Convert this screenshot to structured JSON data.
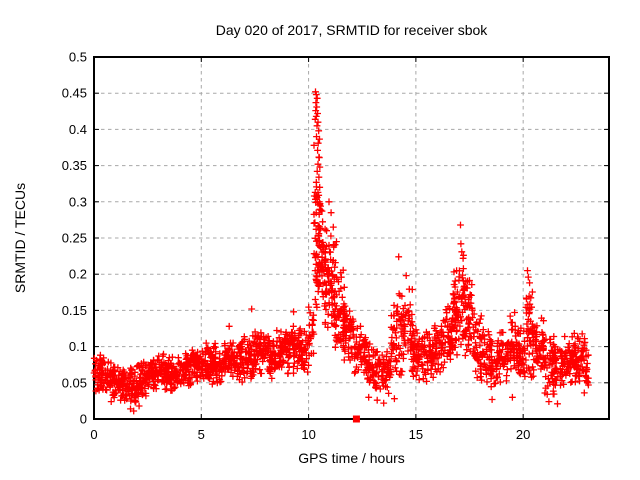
{
  "chart_data": {
    "type": "scatter",
    "title": "Day 020 of 2017, SRMTID for receiver sbok",
    "xlabel": "GPS time / hours",
    "ylabel": "SRMTID / TECUs",
    "xlim": [
      0,
      24
    ],
    "ylim": [
      0,
      0.5
    ],
    "xticks": [
      0,
      5,
      10,
      15,
      20
    ],
    "xtick_labels": [
      "0",
      "5",
      "10",
      "15",
      "20"
    ],
    "yticks": [
      0,
      0.05,
      0.1,
      0.15,
      0.2,
      0.25,
      0.3,
      0.35,
      0.4,
      0.45,
      0.5
    ],
    "ytick_labels": [
      "0",
      "0.05",
      "0.1",
      "0.15",
      "0.2",
      "0.25",
      "0.3",
      "0.35",
      "0.4",
      "0.45",
      "0.5"
    ],
    "grid": "dashed-both-axes",
    "legend": "none",
    "seed": 7,
    "colors": {
      "marker": "#ff0000",
      "grid": "#a8a8a8",
      "axis": "#000000",
      "background": "#ffffff",
      "text": "#000000"
    },
    "series": [
      {
        "name": "SRMTID",
        "marker": "plus",
        "marker_size": 7,
        "color": "#ff0000",
        "density_bands": [
          [
            0.0,
            0.5,
            0.035,
            0.09,
            52
          ],
          [
            0.5,
            1.0,
            0.028,
            0.082,
            52
          ],
          [
            1.0,
            1.5,
            0.02,
            0.075,
            52
          ],
          [
            1.5,
            2.0,
            0.015,
            0.072,
            52
          ],
          [
            2.0,
            2.5,
            0.028,
            0.08,
            52
          ],
          [
            2.5,
            3.0,
            0.035,
            0.088,
            52
          ],
          [
            3.0,
            3.5,
            0.038,
            0.095,
            52
          ],
          [
            3.5,
            4.0,
            0.035,
            0.09,
            52
          ],
          [
            4.0,
            4.5,
            0.04,
            0.1,
            52
          ],
          [
            4.5,
            5.0,
            0.045,
            0.105,
            52
          ],
          [
            5.0,
            5.5,
            0.048,
            0.11,
            52
          ],
          [
            5.5,
            6.0,
            0.045,
            0.105,
            52
          ],
          [
            6.0,
            6.5,
            0.05,
            0.115,
            52
          ],
          [
            6.5,
            7.0,
            0.048,
            0.11,
            52
          ],
          [
            7.0,
            7.5,
            0.055,
            0.125,
            52
          ],
          [
            7.5,
            8.0,
            0.058,
            0.132,
            52
          ],
          [
            8.0,
            8.5,
            0.055,
            0.12,
            52
          ],
          [
            8.5,
            9.0,
            0.06,
            0.13,
            52
          ],
          [
            9.0,
            9.5,
            0.062,
            0.135,
            52
          ],
          [
            9.5,
            10.0,
            0.06,
            0.128,
            48
          ],
          [
            10.0,
            10.25,
            0.075,
            0.16,
            20
          ],
          [
            10.25,
            10.6,
            0.14,
            0.42,
            40
          ],
          [
            10.3,
            10.8,
            0.13,
            0.3,
            60
          ],
          [
            10.75,
            11.25,
            0.11,
            0.27,
            65
          ],
          [
            11.2,
            11.7,
            0.09,
            0.21,
            55
          ],
          [
            11.6,
            12.1,
            0.075,
            0.165,
            50
          ],
          [
            12.1,
            12.7,
            0.055,
            0.135,
            52
          ],
          [
            12.7,
            13.3,
            0.035,
            0.11,
            52
          ],
          [
            13.3,
            13.85,
            0.03,
            0.1,
            48
          ],
          [
            13.85,
            14.35,
            0.05,
            0.185,
            45
          ],
          [
            14.3,
            14.85,
            0.055,
            0.19,
            50
          ],
          [
            14.8,
            15.3,
            0.048,
            0.135,
            50
          ],
          [
            15.3,
            15.85,
            0.05,
            0.125,
            50
          ],
          [
            15.85,
            16.35,
            0.055,
            0.14,
            50
          ],
          [
            16.35,
            16.75,
            0.06,
            0.17,
            45
          ],
          [
            16.7,
            17.0,
            0.07,
            0.21,
            40
          ],
          [
            17.0,
            17.35,
            0.08,
            0.24,
            42
          ],
          [
            17.3,
            17.75,
            0.065,
            0.2,
            45
          ],
          [
            17.7,
            18.25,
            0.05,
            0.155,
            50
          ],
          [
            18.25,
            18.8,
            0.035,
            0.13,
            50
          ],
          [
            18.75,
            19.3,
            0.045,
            0.125,
            50
          ],
          [
            19.25,
            19.8,
            0.05,
            0.15,
            50
          ],
          [
            19.75,
            20.1,
            0.05,
            0.13,
            38
          ],
          [
            20.1,
            20.45,
            0.055,
            0.19,
            40
          ],
          [
            20.4,
            20.95,
            0.05,
            0.15,
            50
          ],
          [
            20.9,
            21.45,
            0.03,
            0.12,
            50
          ],
          [
            21.4,
            21.95,
            0.03,
            0.11,
            50
          ],
          [
            21.9,
            22.45,
            0.04,
            0.12,
            50
          ],
          [
            22.4,
            22.95,
            0.04,
            0.125,
            52
          ],
          [
            22.9,
            23.05,
            0.04,
            0.1,
            14
          ]
        ],
        "peak_points": [
          [
            10.32,
            0.452
          ],
          [
            10.36,
            0.448
          ],
          [
            10.4,
            0.443
          ],
          [
            10.34,
            0.437
          ],
          [
            10.38,
            0.431
          ],
          [
            10.33,
            0.426
          ],
          [
            10.42,
            0.422
          ],
          [
            10.36,
            0.418
          ],
          [
            10.31,
            0.414
          ],
          [
            10.44,
            0.41
          ],
          [
            10.39,
            0.405
          ],
          [
            10.47,
            0.398
          ],
          [
            10.37,
            0.39
          ],
          [
            10.45,
            0.381
          ],
          [
            10.42,
            0.371
          ],
          [
            10.5,
            0.361
          ],
          [
            10.44,
            0.352
          ],
          [
            10.4,
            0.342
          ],
          [
            10.48,
            0.334
          ],
          [
            10.36,
            0.327
          ],
          [
            10.52,
            0.32
          ],
          [
            10.44,
            0.313
          ],
          [
            10.4,
            0.306
          ],
          [
            10.5,
            0.3
          ],
          [
            10.56,
            0.294
          ],
          [
            10.95,
            0.3
          ],
          [
            11.05,
            0.285
          ],
          [
            11.15,
            0.265
          ],
          [
            11.3,
            0.245
          ],
          [
            14.2,
            0.224
          ],
          [
            14.55,
            0.198
          ],
          [
            17.08,
            0.268
          ],
          [
            17.1,
            0.242
          ],
          [
            17.14,
            0.231
          ],
          [
            17.2,
            0.222
          ],
          [
            16.9,
            0.205
          ],
          [
            20.2,
            0.205
          ],
          [
            20.24,
            0.196
          ],
          [
            20.3,
            0.188
          ],
          [
            7.35,
            0.152
          ],
          [
            6.3,
            0.128
          ],
          [
            9.3,
            0.148
          ],
          [
            0.8,
            0.024
          ],
          [
            1.7,
            0.014
          ],
          [
            1.85,
            0.011
          ],
          [
            2.1,
            0.018
          ],
          [
            12.8,
            0.03
          ],
          [
            13.2,
            0.026
          ],
          [
            13.5,
            0.022
          ],
          [
            14.0,
            0.028
          ],
          [
            18.55,
            0.027
          ],
          [
            19.5,
            0.03
          ],
          [
            21.2,
            0.024
          ],
          [
            21.6,
            0.021
          ],
          [
            22.85,
            0.036
          ],
          [
            23.0,
            0.05
          ]
        ]
      }
    ],
    "special_points": [
      {
        "x": 12.23,
        "y": 0,
        "marker": "filled-square",
        "color": "#ff0000",
        "note": "marker on x-axis"
      }
    ]
  }
}
